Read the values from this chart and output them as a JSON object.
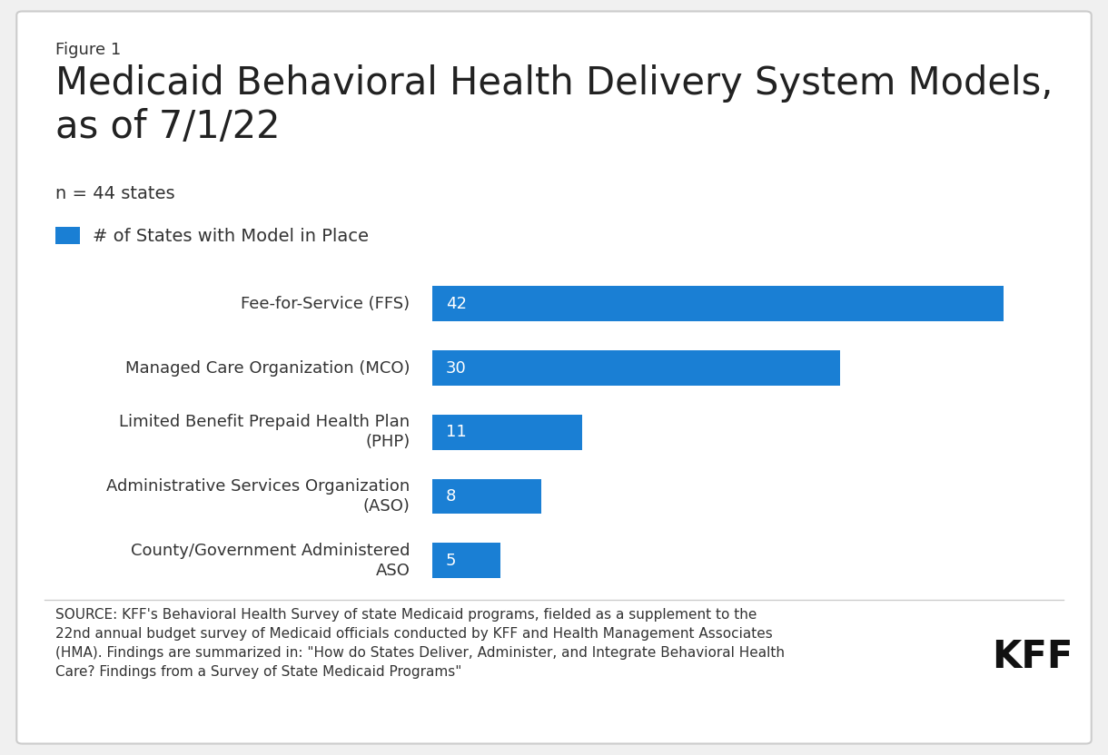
{
  "figure_label": "Figure 1",
  "title": "Medicaid Behavioral Health Delivery System Models,\nas of 7/1/22",
  "subtitle": "n = 44 states",
  "legend_label": "# of States with Model in Place",
  "categories": [
    "Fee-for-Service (FFS)",
    "Managed Care Organization (MCO)",
    "Limited Benefit Prepaid Health Plan\n(PHP)",
    "Administrative Services Organization\n(ASO)",
    "County/Government Administered\nASO"
  ],
  "values": [
    42,
    30,
    11,
    8,
    5
  ],
  "bar_color": "#1a7fd4",
  "bar_label_color": "#ffffff",
  "xlim": [
    0,
    46
  ],
  "background_color": "#f0f0f0",
  "figure_label_fontsize": 13,
  "title_fontsize": 30,
  "subtitle_fontsize": 14,
  "legend_fontsize": 14,
  "category_fontsize": 13,
  "bar_label_fontsize": 13,
  "source_text": "SOURCE: KFF's Behavioral Health Survey of state Medicaid programs, fielded as a supplement to the\n22nd annual budget survey of Medicaid officials conducted by KFF and Health Management Associates\n(HMA). Findings are summarized in: \"How do States Deliver, Administer, and Integrate Behavioral Health\nCare? Findings from a Survey of State Medicaid Programs\"",
  "source_fontsize": 11,
  "kff_fontsize": 30,
  "text_color": "#333333",
  "border_color": "#cccccc"
}
